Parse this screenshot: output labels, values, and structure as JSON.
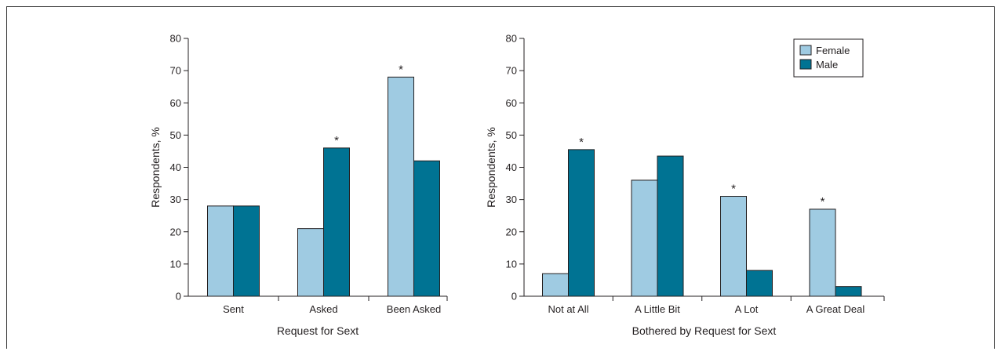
{
  "chart_data": [
    {
      "type": "bar",
      "title": "",
      "xlabel": "Request for Sext",
      "ylabel": "Respondents, %",
      "ylim": [
        0,
        80
      ],
      "yticks": [
        0,
        10,
        20,
        30,
        40,
        50,
        60,
        70,
        80
      ],
      "categories": [
        "Sent",
        "Asked",
        "Been Asked"
      ],
      "series": [
        {
          "name": "Female",
          "values": [
            28,
            21,
            68
          ]
        },
        {
          "name": "Male",
          "values": [
            28,
            46,
            42
          ]
        }
      ],
      "annotations": [
        {
          "category_index": 1,
          "text": "*"
        },
        {
          "category_index": 2,
          "text": "*"
        }
      ],
      "legend": null,
      "grid": false
    },
    {
      "type": "bar",
      "title": "",
      "xlabel": "Bothered by Request for Sext",
      "ylabel": "Respondents, %",
      "ylim": [
        0,
        80
      ],
      "yticks": [
        0,
        10,
        20,
        30,
        40,
        50,
        60,
        70,
        80
      ],
      "categories": [
        "Not at All",
        "A Little Bit",
        "A Lot",
        "A Great Deal"
      ],
      "series": [
        {
          "name": "Female",
          "values": [
            7,
            36,
            31,
            27
          ]
        },
        {
          "name": "Male",
          "values": [
            45.5,
            43.5,
            8,
            3
          ]
        }
      ],
      "annotations": [
        {
          "category_index": 0,
          "text": "*"
        },
        {
          "category_index": 2,
          "text": "*"
        },
        {
          "category_index": 3,
          "text": "*"
        }
      ],
      "legend": "top-right",
      "grid": false
    }
  ],
  "colors": {
    "female": "#9fcbe2",
    "male": "#007393",
    "axis": "#231f20"
  }
}
